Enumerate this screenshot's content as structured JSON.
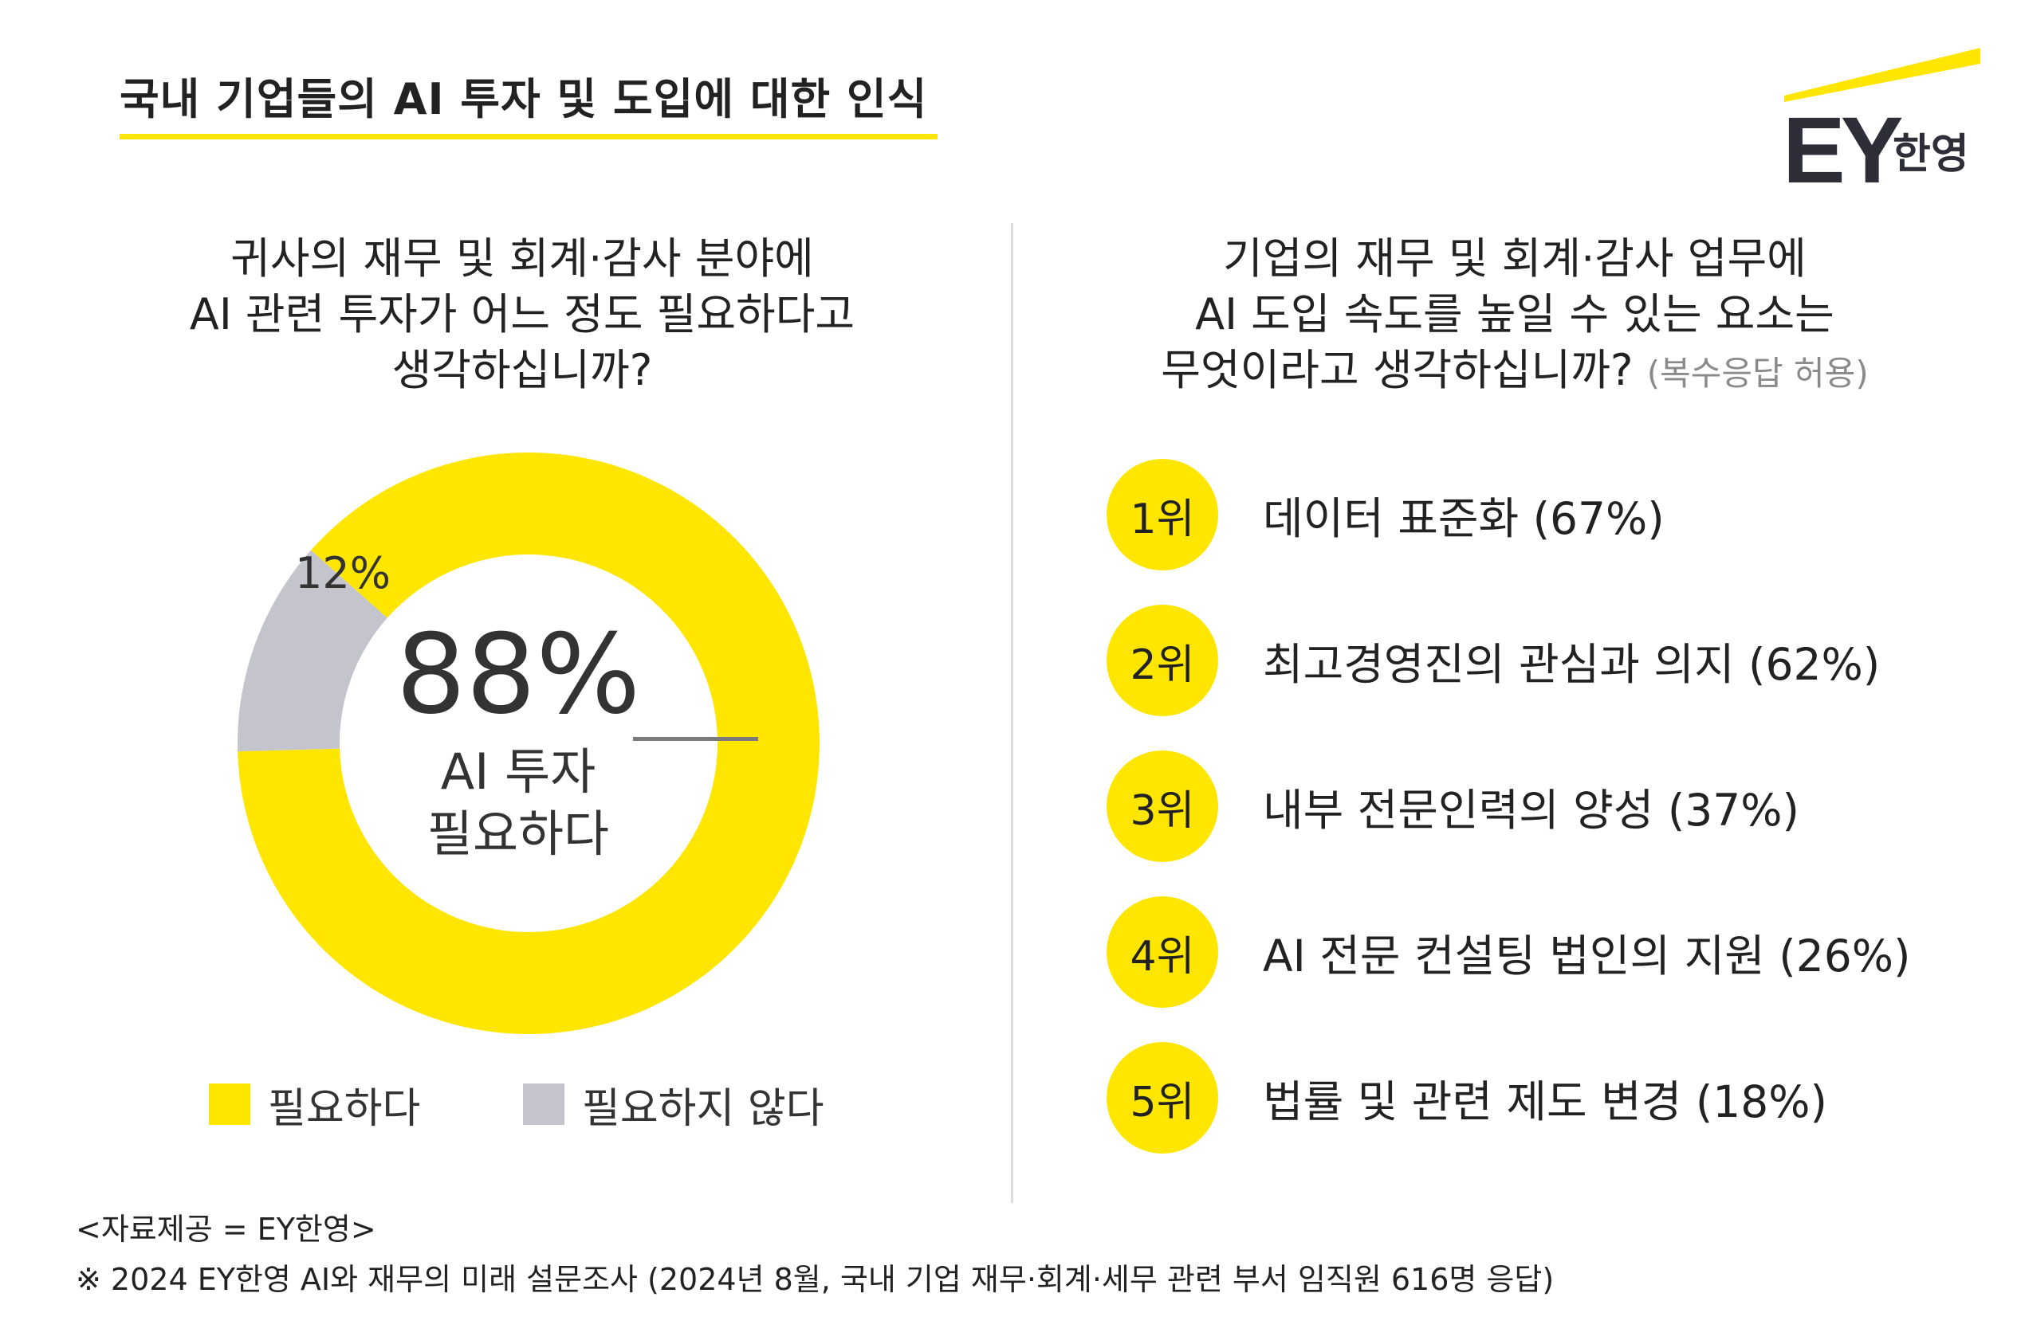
{
  "header": {
    "title": "국내 기업들의 AI 투자 및 도입에 대한 인식"
  },
  "logo": {
    "ey": "EY",
    "korean": "한영"
  },
  "colors": {
    "accent": "#ffe600",
    "gray": "#c4c4cc",
    "dark": "#2e2e38"
  },
  "left_question": {
    "line1": "귀사의 재무 및 회계·감사 분야에",
    "line2": "AI 관련 투자가 어느 정도 필요하다고",
    "line3": "생각하십니까?"
  },
  "right_question": {
    "line1": "기업의 재무 및 회계·감사 업무에",
    "line2": "AI 도입 속도를 높일 수 있는 요소는",
    "line3": "무엇이라고 생각하십니까?",
    "note": "(복수응답 허용)"
  },
  "donut_center": {
    "value": "88%",
    "line1": "AI 투자",
    "line2": "필요하다"
  },
  "small_slice_label": "12%",
  "legend": [
    {
      "label": "필요하다",
      "color": "#ffe600"
    },
    {
      "label": "필요하지 않다",
      "color": "#c4c4cc"
    }
  ],
  "chart_data": [
    {
      "type": "pie",
      "categories": [
        "필요하다",
        "필요하지 않다"
      ],
      "values": [
        88,
        12
      ],
      "data_labels": [
        "88%",
        "12%"
      ],
      "legend_placement": "bottom"
    },
    {
      "type": "table",
      "columns": [
        "rank",
        "item",
        "percent"
      ],
      "rows": [
        [
          "1위",
          "데이터 표준화",
          67
        ],
        [
          "2위",
          "최고경영진의 관심과 의지",
          62
        ],
        [
          "3위",
          "내부 전문인력의 양성",
          37
        ],
        [
          "4위",
          "AI 전문 컨설팅 법인의 지원",
          26
        ],
        [
          "5위",
          "법률 및 관련 제도 변경",
          18
        ]
      ]
    }
  ],
  "ranks": [
    {
      "rank": "1위",
      "text": "데이터 표준화 (67%)"
    },
    {
      "rank": "2위",
      "text": "최고경영진의 관심과 의지 (62%)"
    },
    {
      "rank": "3위",
      "text": "내부 전문인력의 양성 (37%)"
    },
    {
      "rank": "4위",
      "text": "AI 전문 컨설팅 법인의 지원 (26%)"
    },
    {
      "rank": "5위",
      "text": "법률 및 관련 제도 변경 (18%)"
    }
  ],
  "footer": {
    "source": "<자료제공 = EY한영>",
    "note": "※ 2024 EY한영 AI와 재무의 미래 설문조사 (2024년 8월, 국내 기업 재무·회계·세무 관련 부서 임직원 616명 응답)"
  }
}
